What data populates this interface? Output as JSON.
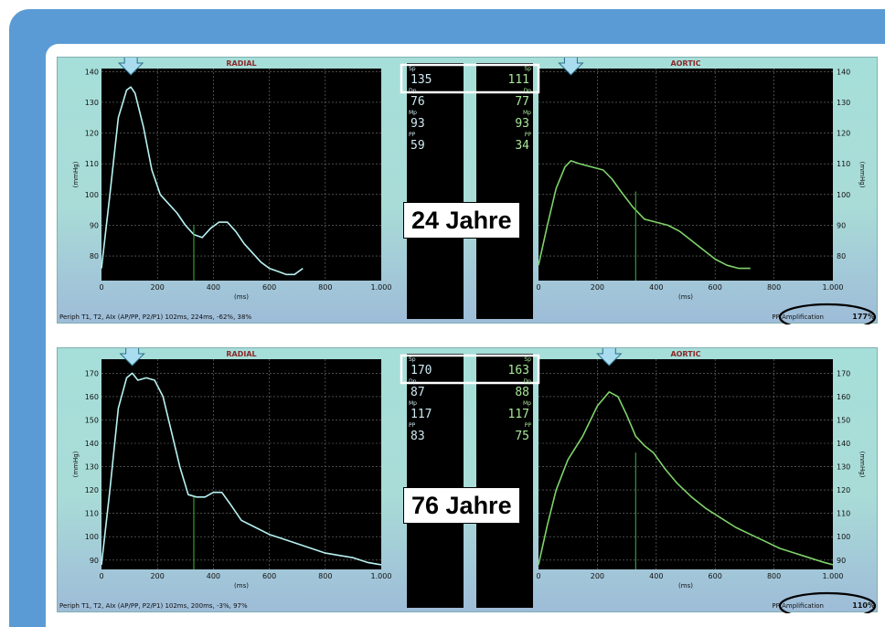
{
  "panels": [
    {
      "id": "top",
      "radial": {
        "title": "RADIAL",
        "y_ticks": [
          "140",
          "130",
          "120",
          "110",
          "100",
          "90",
          "80"
        ],
        "x_ticks": [
          "0",
          "200",
          "400",
          "600",
          "800",
          "1.000"
        ],
        "x_unit": "(ms)",
        "y_unit": "(mmHg)"
      },
      "aortic": {
        "title": "AORTIC",
        "y_ticks": [
          "140",
          "130",
          "120",
          "110",
          "100",
          "90",
          "80"
        ],
        "x_ticks": [
          "0",
          "200",
          "400",
          "600",
          "800",
          "1.000"
        ],
        "x_unit": "(ms)",
        "y_unit": "(mmHg)"
      },
      "readouts": {
        "left": [
          {
            "label": "Sp",
            "value": "135"
          },
          {
            "label": "Dp",
            "value": "76"
          },
          {
            "label": "Mp",
            "value": "93"
          },
          {
            "label": "PP",
            "value": "59"
          }
        ],
        "right": [
          {
            "label": "Sp",
            "value": "111"
          },
          {
            "label": "Dp",
            "value": "77"
          },
          {
            "label": "Mp",
            "value": "93"
          },
          {
            "label": "PP",
            "value": "34"
          }
        ]
      },
      "age_label": "24 Jahre",
      "footer_left": "Periph T1, T2, AIx (AP/PP, P2/P1)    102ms, 224ms, -62%, 38%",
      "footer_right_label": "PP Amplification",
      "footer_right_value": "177%"
    },
    {
      "id": "bottom",
      "radial": {
        "title": "RADIAL",
        "y_ticks": [
          "170",
          "160",
          "150",
          "140",
          "130",
          "120",
          "110",
          "100",
          "90"
        ],
        "x_ticks": [
          "0",
          "200",
          "400",
          "600",
          "800",
          "1.000"
        ],
        "x_unit": "(ms)",
        "y_unit": "(mmHg)"
      },
      "aortic": {
        "title": "AORTIC",
        "y_ticks": [
          "170",
          "160",
          "150",
          "140",
          "130",
          "120",
          "110",
          "100",
          "90"
        ],
        "x_ticks": [
          "0",
          "200",
          "400",
          "600",
          "800",
          "1.000"
        ],
        "x_unit": "(ms)",
        "y_unit": "(mmHg)"
      },
      "readouts": {
        "left": [
          {
            "label": "Sp",
            "value": "170"
          },
          {
            "label": "Dp",
            "value": "87"
          },
          {
            "label": "Mp",
            "value": "117"
          },
          {
            "label": "PP",
            "value": "83"
          }
        ],
        "right": [
          {
            "label": "Sp",
            "value": "163"
          },
          {
            "label": "Dp",
            "value": "88"
          },
          {
            "label": "Mp",
            "value": "117"
          },
          {
            "label": "PP",
            "value": "75"
          }
        ]
      },
      "age_label": "76 Jahre",
      "footer_left": "Periph T1, T2, AIx (AP/PP, P2/P1)    102ms, 200ms, -3%, 97%",
      "footer_right_label": "PP Amplification",
      "footer_right_value": "110%"
    }
  ],
  "colors": {
    "radial_line": "#b8f2f2",
    "aortic_line": "#7fd36a",
    "plot_bg": "#000000",
    "readout_text": "#cfe8f0",
    "readout_text_right": "#a8e89a",
    "arrow_fill": "#a9dcef"
  },
  "chart_data": [
    {
      "type": "line",
      "title": "RADIAL",
      "xlabel": "(ms)",
      "ylabel": "(mmHg)",
      "xlim": [
        0,
        1000
      ],
      "ylim": [
        72,
        141
      ],
      "series": [
        {
          "x": [
            0,
            30,
            60,
            90,
            105,
            120,
            150,
            180,
            210,
            240,
            270,
            300,
            330,
            360,
            390,
            420,
            450,
            480,
            510,
            540,
            570,
            600,
            630,
            660,
            690,
            720
          ],
          "y": [
            76,
            100,
            125,
            134,
            135,
            133,
            122,
            108,
            100,
            97,
            94,
            90,
            87,
            86,
            89,
            91,
            91,
            88,
            84,
            81,
            78,
            76,
            75,
            74,
            74,
            76
          ]
        }
      ],
      "grid": true
    },
    {
      "type": "line",
      "title": "AORTIC",
      "xlabel": "(ms)",
      "ylabel": "(mmHg)",
      "xlim": [
        0,
        1000
      ],
      "ylim": [
        72,
        141
      ],
      "series": [
        {
          "x": [
            0,
            30,
            60,
            90,
            110,
            140,
            180,
            220,
            250,
            280,
            320,
            360,
            400,
            440,
            480,
            520,
            560,
            600,
            640,
            680,
            720
          ],
          "y": [
            77,
            90,
            102,
            109,
            111,
            110,
            109,
            108,
            105,
            101,
            96,
            92,
            91,
            90,
            88,
            85,
            82,
            79,
            77,
            76,
            76
          ]
        }
      ],
      "grid": true
    },
    {
      "type": "line",
      "title": "RADIAL",
      "xlabel": "(ms)",
      "ylabel": "(mmHg)",
      "xlim": [
        0,
        1000
      ],
      "ylim": [
        86,
        176
      ],
      "series": [
        {
          "x": [
            0,
            30,
            60,
            90,
            110,
            130,
            160,
            190,
            220,
            250,
            280,
            310,
            340,
            370,
            400,
            430,
            460,
            500,
            550,
            600,
            650,
            700,
            750,
            800,
            850,
            900,
            950,
            1000
          ],
          "y": [
            88,
            120,
            155,
            168,
            170,
            167,
            168,
            167,
            160,
            145,
            130,
            118,
            117,
            117,
            119,
            119,
            114,
            107,
            104,
            101,
            99,
            97,
            95,
            93,
            92,
            91,
            89,
            88
          ]
        }
      ],
      "grid": true
    },
    {
      "type": "line",
      "title": "AORTIC",
      "xlabel": "(ms)",
      "ylabel": "(mmHg)",
      "xlim": [
        0,
        1000
      ],
      "ylim": [
        86,
        176
      ],
      "series": [
        {
          "x": [
            0,
            30,
            60,
            100,
            150,
            200,
            240,
            270,
            300,
            330,
            360,
            390,
            430,
            470,
            520,
            570,
            620,
            670,
            720,
            770,
            820,
            870,
            920,
            970,
            1000
          ],
          "y": [
            88,
            105,
            120,
            133,
            143,
            156,
            162,
            160,
            152,
            143,
            139,
            136,
            129,
            123,
            117,
            112,
            108,
            104,
            101,
            98,
            95,
            93,
            91,
            89,
            88
          ]
        }
      ],
      "grid": true
    }
  ]
}
